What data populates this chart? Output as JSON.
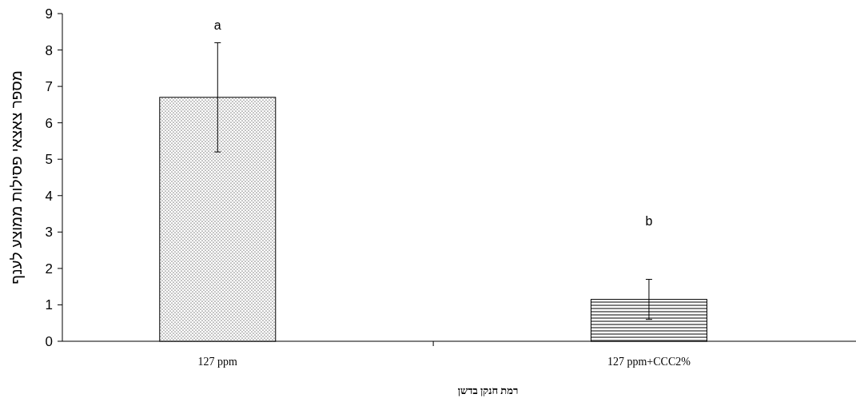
{
  "chart_data": {
    "type": "bar",
    "xlabel": "רמת חנקן בדשן",
    "ylabel": "מספר צאצאי פסילות ממוצע לענף",
    "categories": [
      "127 ppm",
      "127 ppm+CCC2%"
    ],
    "values": [
      6.7,
      1.15
    ],
    "errors": [
      1.5,
      0.55
    ],
    "colors": [
      "#000000",
      "#000000"
    ],
    "ylim": [
      0,
      9
    ],
    "yticks": [
      0,
      1,
      2,
      3,
      4,
      5,
      6,
      7,
      8,
      9
    ],
    "annotations": [
      "a",
      "b"
    ]
  }
}
